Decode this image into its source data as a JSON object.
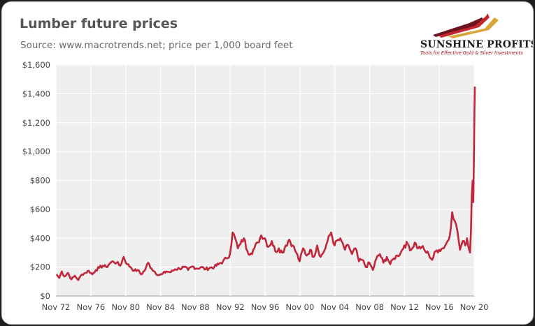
{
  "header": {
    "title": "Lumber future prices",
    "subtitle": "Source: www.macrotrends.net; price per 1,000 board feet"
  },
  "logo": {
    "name": "SUNSHINE PROFITS",
    "tagline": "Tools for Effective Gold & Silver Investments",
    "colors": {
      "dark": "#6e1520",
      "red": "#c2252f",
      "gold": "#d9a53a"
    }
  },
  "chart_data": {
    "type": "line",
    "title": "Lumber future prices",
    "subtitle": "Source: www.macrotrends.net; price per 1,000 board feet",
    "xlabel": "",
    "ylabel": "",
    "x_range": [
      1972.83,
      2020.9
    ],
    "ylim": [
      0,
      1600
    ],
    "y_ticks": [
      0,
      200,
      400,
      600,
      800,
      1000,
      1200,
      1400,
      1600
    ],
    "y_tick_labels": [
      "$0",
      "$200",
      "$400",
      "$600",
      "$800",
      "$1,000",
      "$1,200",
      "$1,400",
      "$1,600"
    ],
    "x_ticks": [
      1972.83,
      1976.83,
      1980.83,
      1984.83,
      1988.83,
      1992.83,
      1996.83,
      2000.83,
      2004.83,
      2008.83,
      2012.83,
      2016.83,
      2020.83
    ],
    "x_tick_labels": [
      "Nov 72",
      "Nov 76",
      "Nov 80",
      "Nov 84",
      "Nov 88",
      "Nov 92",
      "Nov 96",
      "Nov 00",
      "Nov 04",
      "Nov 08",
      "Nov 12",
      "Nov 16",
      "Nov 20"
    ],
    "grid": true,
    "legend": "none",
    "colors": {
      "line": "#c0273a",
      "plot_bg": "#efefef",
      "grid": "#ffffff"
    },
    "series": [
      {
        "x": [
          1972.9,
          1973.2,
          1973.5,
          1973.8,
          1974.2,
          1974.6,
          1975.0,
          1975.4,
          1975.8,
          1976.2,
          1976.6,
          1977.0,
          1977.4,
          1977.8,
          1978.2,
          1978.6,
          1979.0,
          1979.4,
          1979.8,
          1980.2,
          1980.6,
          1981.0,
          1981.4,
          1981.8,
          1982.2,
          1982.6,
          1983.0,
          1983.4,
          1983.8,
          1984.2,
          1984.6,
          1985.0,
          1985.5,
          1986.0,
          1986.5,
          1987.0,
          1987.5,
          1988.0,
          1988.5,
          1989.0,
          1989.5,
          1990.0,
          1990.5,
          1991.0,
          1991.5,
          1992.0,
          1992.4,
          1992.8,
          1993.1,
          1993.4,
          1993.7,
          1994.0,
          1994.4,
          1994.8,
          1995.2,
          1995.6,
          1996.0,
          1996.4,
          1996.8,
          1997.2,
          1997.6,
          1998.0,
          1998.4,
          1998.8,
          1999.2,
          1999.6,
          2000.0,
          2000.4,
          2000.8,
          2001.2,
          2001.6,
          2002.0,
          2002.4,
          2002.8,
          2003.2,
          2003.6,
          2004.0,
          2004.4,
          2004.8,
          2005.2,
          2005.6,
          2006.0,
          2006.4,
          2006.8,
          2007.2,
          2007.6,
          2008.0,
          2008.4,
          2008.8,
          2009.2,
          2009.6,
          2010.0,
          2010.4,
          2010.8,
          2011.2,
          2011.6,
          2012.0,
          2012.4,
          2012.8,
          2013.2,
          2013.6,
          2014.0,
          2014.4,
          2014.8,
          2015.2,
          2015.6,
          2016.0,
          2016.4,
          2016.8,
          2017.2,
          2017.6,
          2018.0,
          2018.3,
          2018.6,
          2018.9,
          2019.2,
          2019.5,
          2019.8,
          2020.0,
          2020.2,
          2020.35,
          2020.45,
          2020.55,
          2020.65,
          2020.72,
          2020.78,
          2020.82,
          2020.86,
          2020.9
        ],
        "y": [
          150,
          125,
          170,
          135,
          160,
          115,
          140,
          110,
          150,
          160,
          175,
          150,
          180,
          195,
          210,
          200,
          225,
          240,
          230,
          210,
          270,
          220,
          200,
          175,
          180,
          150,
          175,
          230,
          190,
          165,
          145,
          150,
          170,
          165,
          185,
          190,
          200,
          180,
          205,
          190,
          200,
          185,
          195,
          200,
          220,
          240,
          260,
          290,
          440,
          400,
          330,
          360,
          400,
          310,
          295,
          330,
          370,
          420,
          400,
          340,
          380,
          310,
          330,
          300,
          350,
          390,
          350,
          300,
          240,
          330,
          280,
          320,
          270,
          350,
          270,
          310,
          380,
          440,
          350,
          390,
          380,
          320,
          350,
          290,
          330,
          240,
          250,
          200,
          230,
          180,
          260,
          290,
          230,
          270,
          220,
          260,
          280,
          300,
          350,
          360,
          320,
          370,
          330,
          340,
          310,
          290,
          250,
          310,
          320,
          330,
          360,
          410,
          580,
          520,
          450,
          320,
          380,
          350,
          400,
          330,
          300,
          450,
          700,
          800,
          650,
          900,
          1100,
          1300,
          1450
        ],
        "values_note": ""
      }
    ]
  }
}
